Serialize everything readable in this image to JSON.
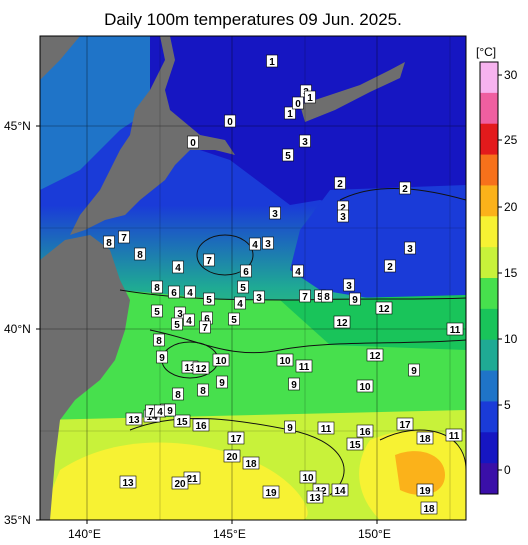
{
  "title": "Daily 100m temperatures 09 Jun. 2025.",
  "colorbar": {
    "unit": "[°C]",
    "ticks": [
      "30",
      "25",
      "20",
      "15",
      "10",
      "5",
      "0"
    ],
    "colors": [
      "#f7b3ef",
      "#ef5fa0",
      "#e31a1c",
      "#f7711b",
      "#fbb21a",
      "#f7f233",
      "#c8f23a",
      "#47e04d",
      "#19c45a",
      "#1faa94",
      "#1f74c8",
      "#1a3bd8",
      "#1616c2",
      "#3a0fa8"
    ]
  },
  "axes": {
    "lat_labels": [
      "45°N",
      "40°N",
      "35°N"
    ],
    "lon_labels": [
      "140°E",
      "145°E",
      "150°E"
    ]
  },
  "isotherm_labels": [
    {
      "v": "1"
    },
    {
      "v": "3"
    },
    {
      "v": "1"
    },
    {
      "v": "0"
    },
    {
      "v": "1"
    },
    {
      "v": "0"
    },
    {
      "v": "0"
    },
    {
      "v": "3"
    },
    {
      "v": "5"
    },
    {
      "v": "2"
    },
    {
      "v": "2"
    },
    {
      "v": "2"
    },
    {
      "v": "3"
    },
    {
      "v": "3"
    },
    {
      "v": "4"
    },
    {
      "v": "3"
    },
    {
      "v": "4"
    },
    {
      "v": "3"
    },
    {
      "v": "8"
    },
    {
      "v": "7"
    },
    {
      "v": "8"
    },
    {
      "v": "4"
    },
    {
      "v": "7"
    },
    {
      "v": "6"
    },
    {
      "v": "5"
    },
    {
      "v": "4"
    },
    {
      "v": "2"
    },
    {
      "v": "8"
    },
    {
      "v": "6"
    },
    {
      "v": "4"
    },
    {
      "v": "5"
    },
    {
      "v": "3"
    },
    {
      "v": "7"
    },
    {
      "v": "5"
    },
    {
      "v": "8"
    },
    {
      "v": "9"
    },
    {
      "v": "12"
    },
    {
      "v": "3"
    },
    {
      "v": "12"
    },
    {
      "v": "11"
    },
    {
      "v": "5"
    },
    {
      "v": "3"
    },
    {
      "v": "5"
    },
    {
      "v": "4"
    },
    {
      "v": "6"
    },
    {
      "v": "7"
    },
    {
      "v": "5"
    },
    {
      "v": "8"
    },
    {
      "v": "9"
    },
    {
      "v": "13"
    },
    {
      "v": "12"
    },
    {
      "v": "10"
    },
    {
      "v": "10"
    },
    {
      "v": "11"
    },
    {
      "v": "12"
    },
    {
      "v": "9"
    },
    {
      "v": "8"
    },
    {
      "v": "8"
    },
    {
      "v": "9"
    },
    {
      "v": "9"
    },
    {
      "v": "10"
    },
    {
      "v": "13"
    },
    {
      "v": "14"
    },
    {
      "v": "8"
    },
    {
      "v": "15"
    },
    {
      "v": "16"
    },
    {
      "v": "17"
    },
    {
      "v": "20"
    },
    {
      "v": "18"
    },
    {
      "v": "9"
    },
    {
      "v": "11"
    },
    {
      "v": "16"
    },
    {
      "v": "15"
    },
    {
      "v": "17"
    },
    {
      "v": "18"
    },
    {
      "v": "11"
    },
    {
      "v": "13"
    },
    {
      "v": "21"
    },
    {
      "v": "20"
    },
    {
      "v": "19"
    },
    {
      "v": "10"
    },
    {
      "v": "12"
    },
    {
      "v": "13"
    },
    {
      "v": "14"
    },
    {
      "v": "19"
    },
    {
      "v": "18"
    },
    {
      "v": "7"
    },
    {
      "v": "4"
    },
    {
      "v": "9"
    }
  ]
}
